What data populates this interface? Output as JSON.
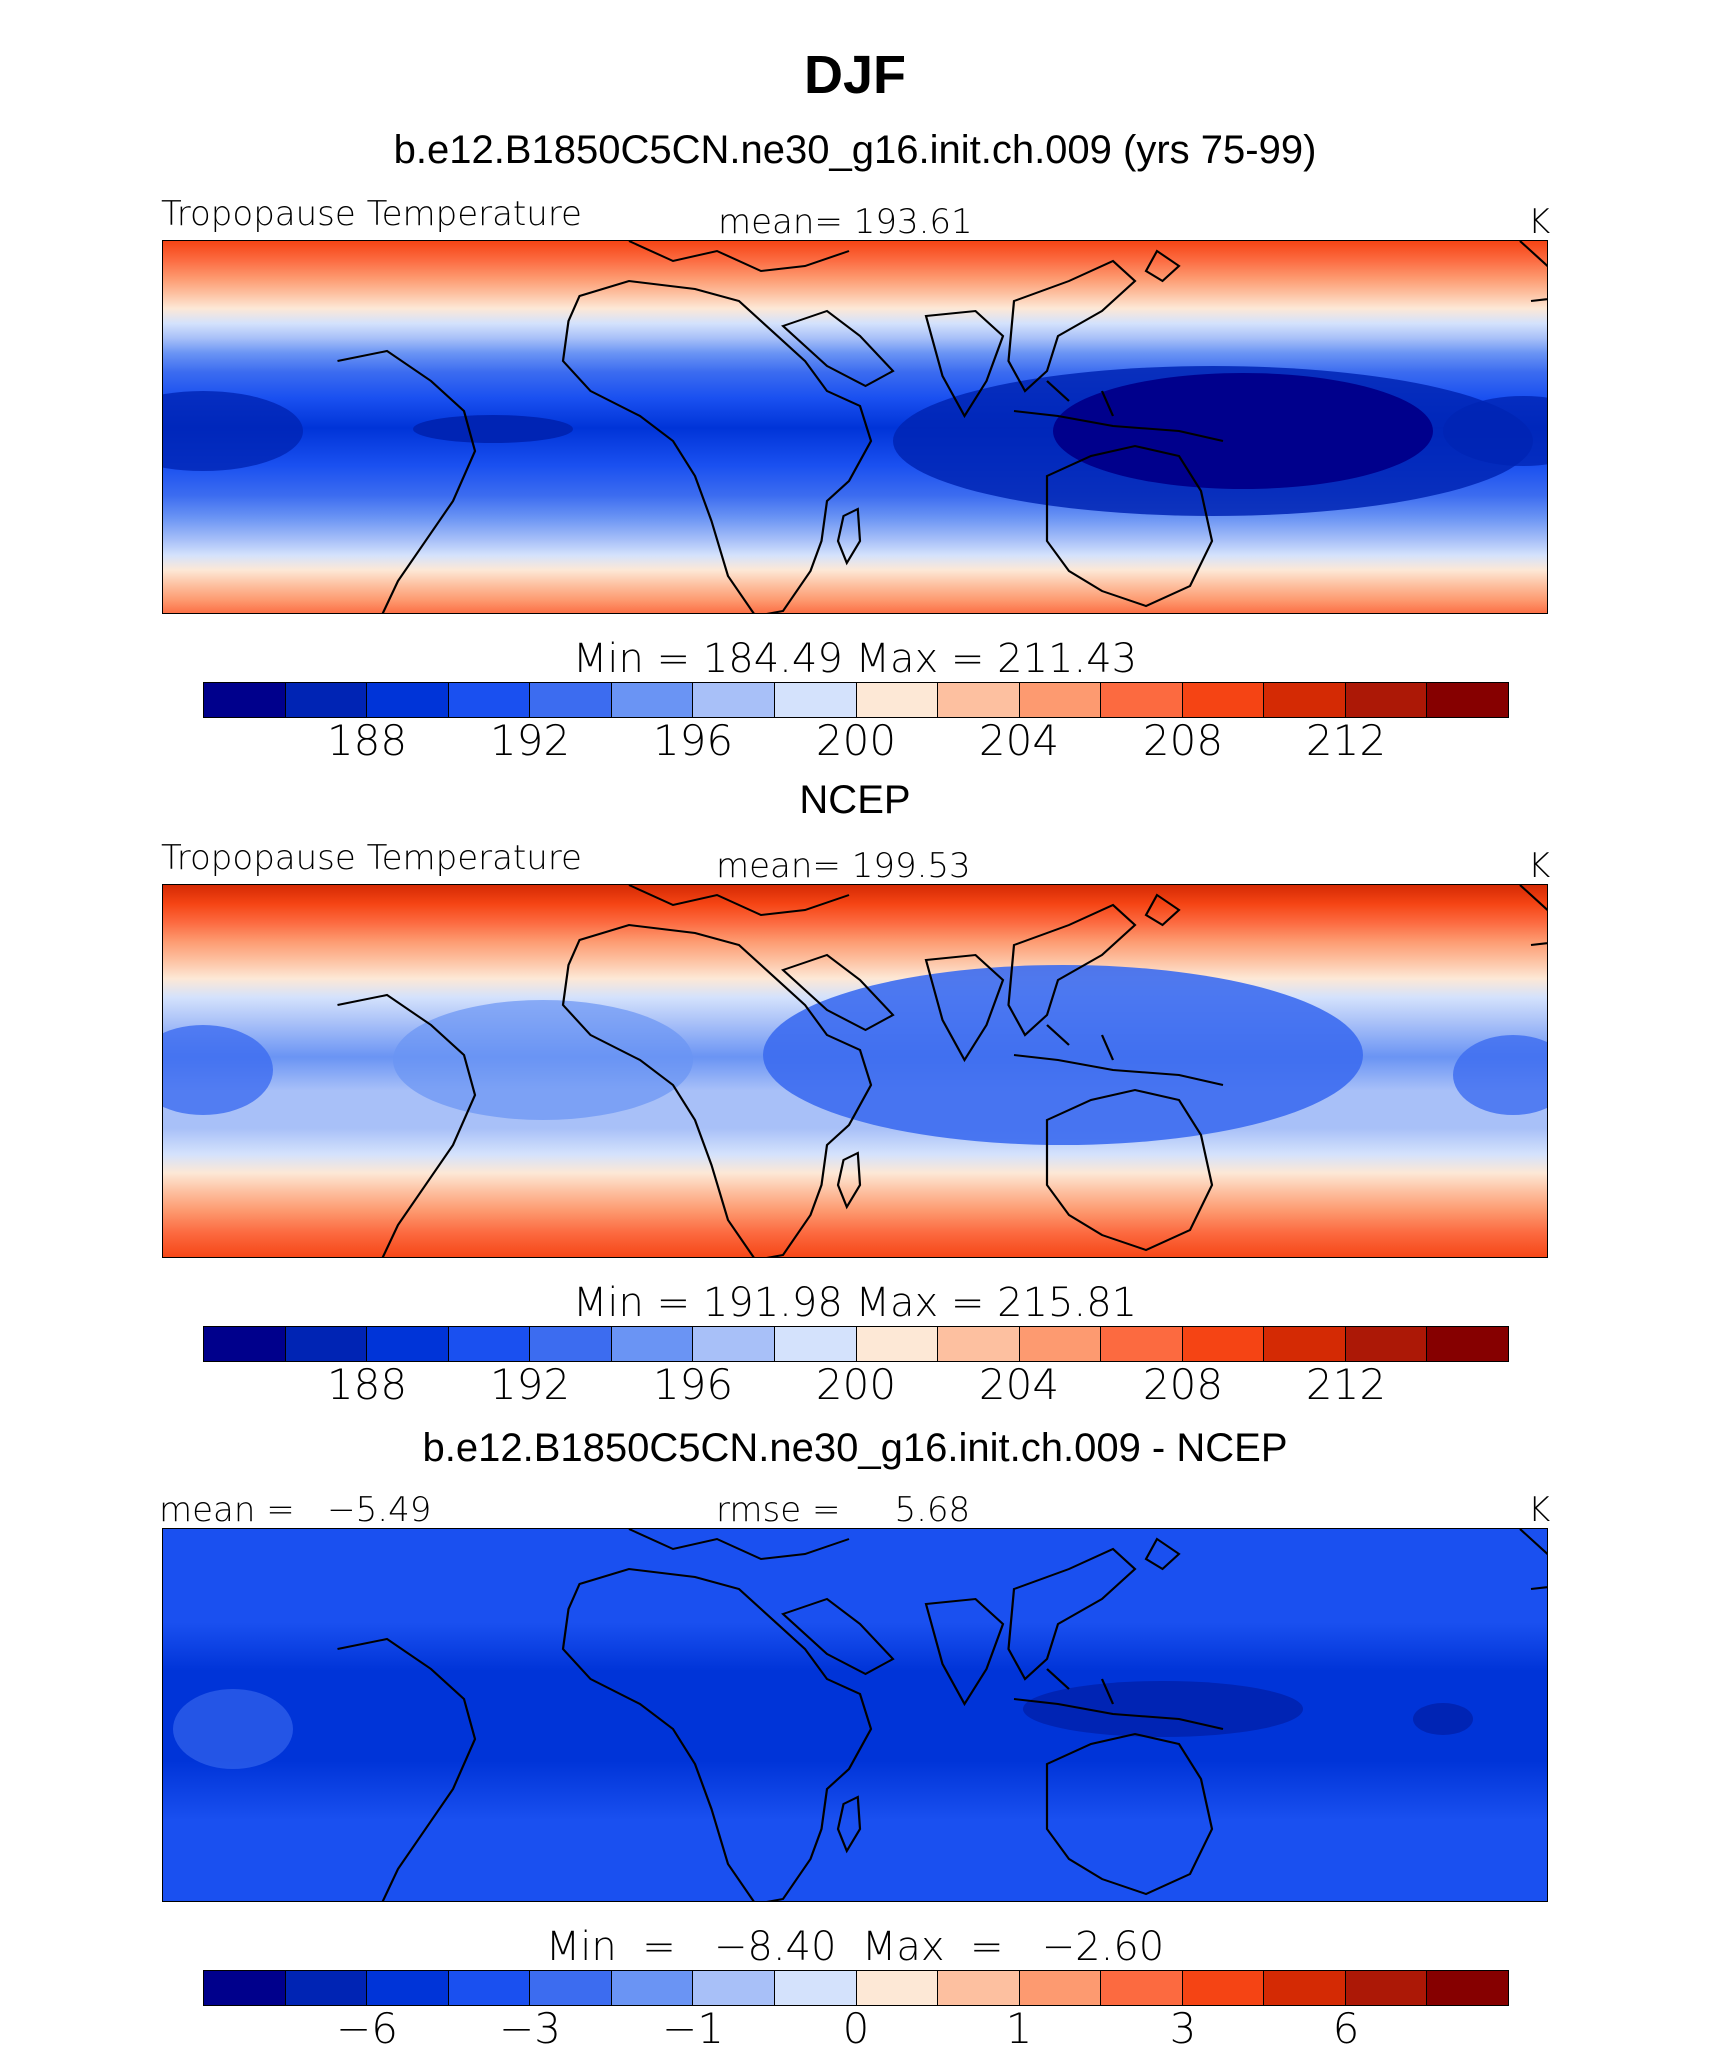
{
  "title": "DJF",
  "colors": [
    "#00008c",
    "#0024b4",
    "#0034d8",
    "#1a50f0",
    "#3c6cf0",
    "#6a94f4",
    "#a8c0f8",
    "#d4e2fc",
    "#fde8d6",
    "#fdc0a0",
    "#fd9a70",
    "#fc6a40",
    "#f54414",
    "#d42a04",
    "#ac1806",
    "#860000"
  ],
  "panels": [
    {
      "id": "model",
      "header": "b.e12.B1850C5CN.ne30_g16.init.ch.009 (yrs 75-99)",
      "left": "Tropopause  Temperature",
      "center": "mean=  193.61",
      "units": "K",
      "minmax": "Min  =  184.49  Max  =  211.43",
      "ticks": [
        "188",
        "192",
        "196",
        "200",
        "204",
        "208",
        "212"
      ]
    },
    {
      "id": "obs",
      "header": "NCEP",
      "left": "Tropopause  Temperature",
      "center": "mean=  199.53",
      "units": "K",
      "minmax": "Min  =  191.98  Max  =  215.81",
      "ticks": [
        "188",
        "192",
        "196",
        "200",
        "204",
        "208",
        "212"
      ]
    },
    {
      "id": "diff",
      "header": "b.e12.B1850C5CN.ne30_g16.init.ch.009 - NCEP",
      "left": "mean =   −5.49",
      "center": "rmse =     5.68",
      "units": "K",
      "minmax": "Min  =   −8.40  Max  =   −2.60",
      "ticks": [
        "−6",
        "−3",
        "−1",
        "0",
        "1",
        "3",
        "6"
      ]
    }
  ]
}
